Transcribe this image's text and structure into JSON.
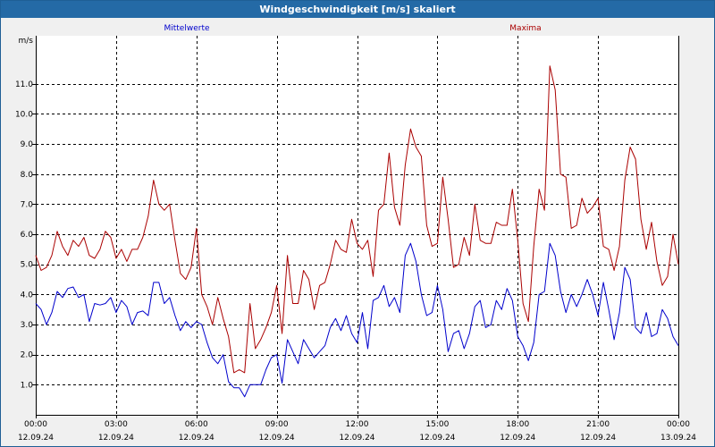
{
  "window": {
    "title": "Windgeschwindigkeit [m/s] skaliert"
  },
  "colors": {
    "mean": "#0000cc",
    "max": "#aa0000",
    "title_bar": "#246aa6",
    "grid": "#000000"
  },
  "chart_data": {
    "type": "line",
    "title": "Windgeschwindigkeit [m/s] skaliert",
    "ylabel": "m/s",
    "ylim": [
      0.0,
      12.6
    ],
    "y_ticks": [
      "1.0",
      "2.0",
      "3.0",
      "4.0",
      "5.0",
      "6.0",
      "7.0",
      "8.0",
      "9.0",
      "10.0",
      "11.0"
    ],
    "x_ticks": [
      {
        "time": "00:00",
        "date": "12.09.24"
      },
      {
        "time": "03:00",
        "date": "12.09.24"
      },
      {
        "time": "06:00",
        "date": "12.09.24"
      },
      {
        "time": "09:00",
        "date": "12.09.24"
      },
      {
        "time": "12:00",
        "date": "12.09.24"
      },
      {
        "time": "15:00",
        "date": "12.09.24"
      },
      {
        "time": "18:00",
        "date": "12.09.24"
      },
      {
        "time": "21:00",
        "date": "12.09.24"
      },
      {
        "time": "00:00",
        "date": "13.09.24"
      }
    ],
    "x_range_hours": [
      0,
      24
    ],
    "grid": true,
    "series": [
      {
        "name": "Mittelwerte",
        "color": "#0000cc",
        "points": [
          [
            0,
            3.7
          ],
          [
            0.2,
            3.5
          ],
          [
            0.4,
            3.0
          ],
          [
            0.6,
            3.4
          ],
          [
            0.8,
            4.1
          ],
          [
            1.0,
            3.9
          ],
          [
            1.2,
            4.2
          ],
          [
            1.4,
            4.25
          ],
          [
            1.6,
            3.9
          ],
          [
            1.8,
            4.0
          ],
          [
            2.0,
            3.1
          ],
          [
            2.2,
            3.7
          ],
          [
            2.4,
            3.65
          ],
          [
            2.6,
            3.7
          ],
          [
            2.8,
            3.9
          ],
          [
            3.0,
            3.4
          ],
          [
            3.2,
            3.8
          ],
          [
            3.4,
            3.6
          ],
          [
            3.6,
            3.0
          ],
          [
            3.8,
            3.4
          ],
          [
            4.0,
            3.45
          ],
          [
            4.2,
            3.3
          ],
          [
            4.4,
            4.4
          ],
          [
            4.6,
            4.4
          ],
          [
            4.8,
            3.7
          ],
          [
            5.0,
            3.9
          ],
          [
            5.2,
            3.3
          ],
          [
            5.4,
            2.8
          ],
          [
            5.6,
            3.1
          ],
          [
            5.8,
            2.9
          ],
          [
            6.0,
            3.1
          ],
          [
            6.2,
            3.0
          ],
          [
            6.4,
            2.4
          ],
          [
            6.6,
            1.9
          ],
          [
            6.8,
            1.7
          ],
          [
            7.0,
            2.0
          ],
          [
            7.2,
            1.1
          ],
          [
            7.4,
            0.9
          ],
          [
            7.6,
            0.9
          ],
          [
            7.8,
            0.6
          ],
          [
            8.0,
            1.0
          ],
          [
            8.2,
            1.0
          ],
          [
            8.4,
            1.0
          ],
          [
            8.6,
            1.5
          ],
          [
            8.8,
            1.9
          ],
          [
            9.0,
            2.0
          ],
          [
            9.2,
            1.05
          ],
          [
            9.4,
            2.5
          ],
          [
            9.6,
            2.1
          ],
          [
            9.8,
            1.7
          ],
          [
            10.0,
            2.5
          ],
          [
            10.2,
            2.2
          ],
          [
            10.4,
            1.9
          ],
          [
            10.6,
            2.1
          ],
          [
            10.8,
            2.3
          ],
          [
            11.0,
            2.9
          ],
          [
            11.2,
            3.2
          ],
          [
            11.4,
            2.8
          ],
          [
            11.6,
            3.3
          ],
          [
            11.8,
            2.7
          ],
          [
            12.0,
            2.4
          ],
          [
            12.2,
            3.4
          ],
          [
            12.4,
            2.2
          ],
          [
            12.6,
            3.8
          ],
          [
            12.8,
            3.9
          ],
          [
            13.0,
            4.3
          ],
          [
            13.2,
            3.6
          ],
          [
            13.4,
            3.9
          ],
          [
            13.6,
            3.4
          ],
          [
            13.8,
            5.3
          ],
          [
            14.0,
            5.7
          ],
          [
            14.2,
            5.1
          ],
          [
            14.4,
            4.0
          ],
          [
            14.6,
            3.3
          ],
          [
            14.8,
            3.4
          ],
          [
            15.0,
            4.3
          ],
          [
            15.2,
            3.5
          ],
          [
            15.4,
            2.1
          ],
          [
            15.6,
            2.7
          ],
          [
            15.8,
            2.8
          ],
          [
            16.0,
            2.2
          ],
          [
            16.2,
            2.7
          ],
          [
            16.4,
            3.6
          ],
          [
            16.6,
            3.8
          ],
          [
            16.8,
            2.9
          ],
          [
            17.0,
            3.0
          ],
          [
            17.2,
            3.8
          ],
          [
            17.4,
            3.5
          ],
          [
            17.6,
            4.2
          ],
          [
            17.8,
            3.8
          ],
          [
            18.0,
            2.6
          ],
          [
            18.2,
            2.3
          ],
          [
            18.4,
            1.8
          ],
          [
            18.6,
            2.4
          ],
          [
            18.8,
            4.0
          ],
          [
            19.0,
            4.1
          ],
          [
            19.2,
            5.7
          ],
          [
            19.4,
            5.3
          ],
          [
            19.6,
            4.1
          ],
          [
            19.8,
            3.4
          ],
          [
            20.0,
            4.0
          ],
          [
            20.2,
            3.6
          ],
          [
            20.4,
            4.0
          ],
          [
            20.6,
            4.5
          ],
          [
            20.8,
            4.0
          ],
          [
            21.0,
            3.3
          ],
          [
            21.2,
            4.4
          ],
          [
            21.4,
            3.5
          ],
          [
            21.6,
            2.5
          ],
          [
            21.8,
            3.4
          ],
          [
            22.0,
            4.9
          ],
          [
            22.2,
            4.5
          ],
          [
            22.4,
            2.9
          ],
          [
            22.6,
            2.7
          ],
          [
            22.8,
            3.4
          ],
          [
            23.0,
            2.6
          ],
          [
            23.2,
            2.7
          ],
          [
            23.4,
            3.5
          ],
          [
            23.6,
            3.2
          ],
          [
            23.8,
            2.6
          ],
          [
            24.0,
            2.3
          ]
        ]
      },
      {
        "name": "Maxima",
        "color": "#aa0000",
        "points": [
          [
            0,
            5.3
          ],
          [
            0.2,
            4.8
          ],
          [
            0.4,
            4.9
          ],
          [
            0.6,
            5.3
          ],
          [
            0.8,
            6.1
          ],
          [
            1.0,
            5.6
          ],
          [
            1.2,
            5.3
          ],
          [
            1.4,
            5.8
          ],
          [
            1.6,
            5.6
          ],
          [
            1.8,
            5.9
          ],
          [
            2.0,
            5.3
          ],
          [
            2.2,
            5.2
          ],
          [
            2.4,
            5.5
          ],
          [
            2.6,
            6.1
          ],
          [
            2.8,
            5.9
          ],
          [
            3.0,
            5.2
          ],
          [
            3.2,
            5.5
          ],
          [
            3.4,
            5.1
          ],
          [
            3.6,
            5.5
          ],
          [
            3.8,
            5.5
          ],
          [
            4.0,
            5.9
          ],
          [
            4.2,
            6.6
          ],
          [
            4.4,
            7.8
          ],
          [
            4.6,
            7.0
          ],
          [
            4.8,
            6.8
          ],
          [
            5.0,
            7.0
          ],
          [
            5.2,
            5.8
          ],
          [
            5.4,
            4.7
          ],
          [
            5.6,
            4.5
          ],
          [
            5.8,
            4.9
          ],
          [
            6.0,
            6.2
          ],
          [
            6.2,
            4.0
          ],
          [
            6.4,
            3.6
          ],
          [
            6.6,
            3.0
          ],
          [
            6.8,
            3.9
          ],
          [
            7.0,
            3.2
          ],
          [
            7.2,
            2.6
          ],
          [
            7.4,
            1.4
          ],
          [
            7.6,
            1.5
          ],
          [
            7.8,
            1.4
          ],
          [
            8.0,
            3.7
          ],
          [
            8.2,
            2.2
          ],
          [
            8.4,
            2.5
          ],
          [
            8.6,
            2.9
          ],
          [
            8.8,
            3.4
          ],
          [
            9.0,
            4.3
          ],
          [
            9.2,
            2.7
          ],
          [
            9.4,
            5.3
          ],
          [
            9.6,
            3.7
          ],
          [
            9.8,
            3.7
          ],
          [
            10.0,
            4.8
          ],
          [
            10.2,
            4.5
          ],
          [
            10.4,
            3.5
          ],
          [
            10.6,
            4.3
          ],
          [
            10.8,
            4.4
          ],
          [
            11.0,
            5.0
          ],
          [
            11.2,
            5.8
          ],
          [
            11.4,
            5.5
          ],
          [
            11.6,
            5.4
          ],
          [
            11.8,
            6.5
          ],
          [
            12.0,
            5.7
          ],
          [
            12.2,
            5.5
          ],
          [
            12.4,
            5.8
          ],
          [
            12.6,
            4.6
          ],
          [
            12.8,
            6.8
          ],
          [
            13.0,
            7.0
          ],
          [
            13.2,
            8.7
          ],
          [
            13.4,
            6.9
          ],
          [
            13.6,
            6.3
          ],
          [
            13.8,
            8.3
          ],
          [
            14.0,
            9.5
          ],
          [
            14.2,
            8.9
          ],
          [
            14.4,
            8.6
          ],
          [
            14.6,
            6.3
          ],
          [
            14.8,
            5.6
          ],
          [
            15.0,
            5.7
          ],
          [
            15.2,
            7.9
          ],
          [
            15.4,
            6.5
          ],
          [
            15.6,
            4.9
          ],
          [
            15.8,
            5.0
          ],
          [
            16.0,
            5.9
          ],
          [
            16.2,
            5.3
          ],
          [
            16.4,
            7.0
          ],
          [
            16.6,
            5.8
          ],
          [
            16.8,
            5.7
          ],
          [
            17.0,
            5.7
          ],
          [
            17.2,
            6.4
          ],
          [
            17.4,
            6.3
          ],
          [
            17.6,
            6.3
          ],
          [
            17.8,
            7.5
          ],
          [
            18.0,
            5.8
          ],
          [
            18.2,
            3.7
          ],
          [
            18.4,
            3.1
          ],
          [
            18.6,
            5.6
          ],
          [
            18.8,
            7.5
          ],
          [
            19.0,
            6.8
          ],
          [
            19.2,
            11.6
          ],
          [
            19.4,
            10.8
          ],
          [
            19.6,
            8.0
          ],
          [
            19.8,
            7.9
          ],
          [
            20.0,
            6.2
          ],
          [
            20.2,
            6.3
          ],
          [
            20.4,
            7.2
          ],
          [
            20.6,
            6.7
          ],
          [
            20.8,
            6.9
          ],
          [
            21.0,
            7.2
          ],
          [
            21.2,
            5.6
          ],
          [
            21.4,
            5.5
          ],
          [
            21.6,
            4.8
          ],
          [
            21.8,
            5.6
          ],
          [
            22.0,
            7.8
          ],
          [
            22.2,
            8.9
          ],
          [
            22.4,
            8.5
          ],
          [
            22.6,
            6.5
          ],
          [
            22.8,
            5.5
          ],
          [
            23.0,
            6.4
          ],
          [
            23.2,
            5.1
          ],
          [
            23.4,
            4.3
          ],
          [
            23.6,
            4.6
          ],
          [
            23.8,
            6.0
          ],
          [
            24.0,
            5.0
          ]
        ]
      }
    ]
  }
}
